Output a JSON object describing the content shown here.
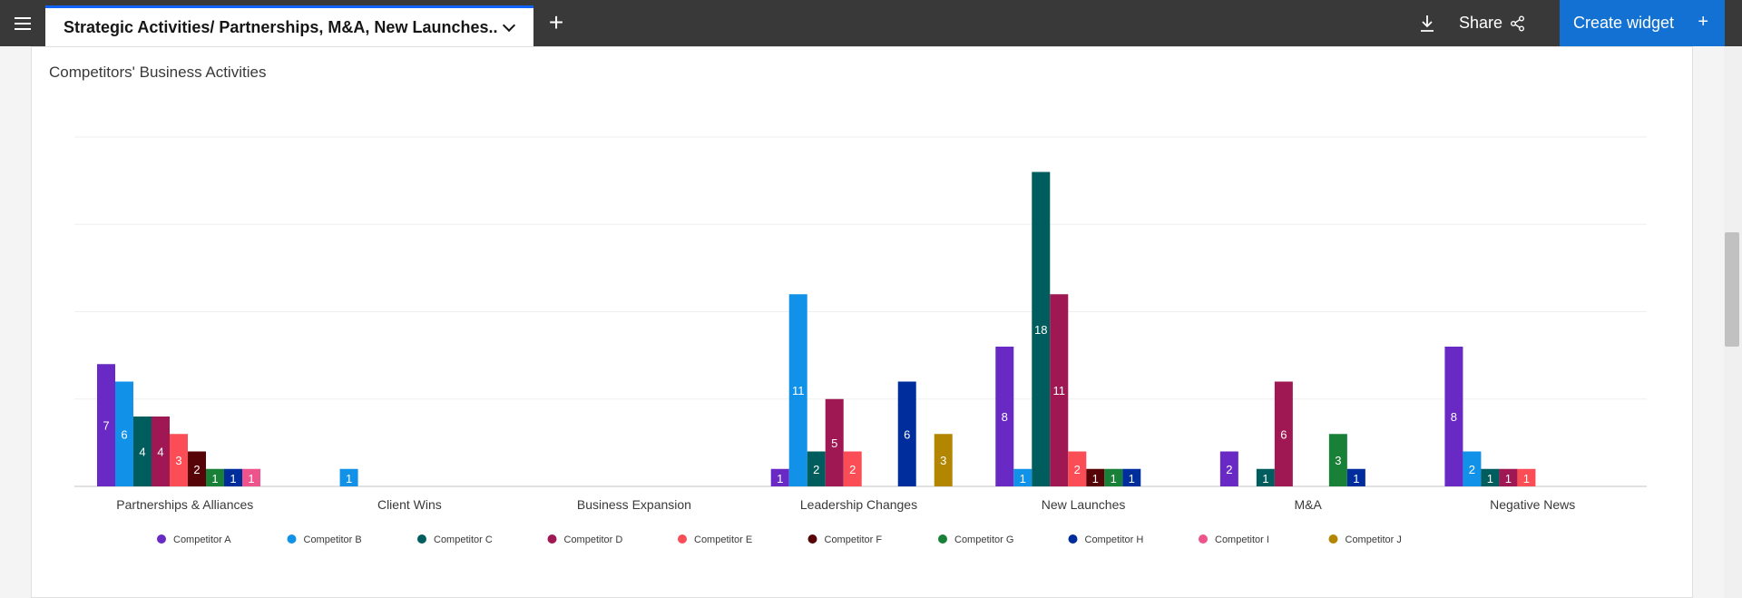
{
  "header": {
    "tab_title": "Strategic Activities/ Partnerships, M&A, New Launches..",
    "add_tab": "+",
    "share_label": "Share",
    "create_label": "Create widget",
    "create_plus": "+"
  },
  "colors": {
    "topbar": "#393939",
    "accent": "#1271d2"
  },
  "chart_data": {
    "type": "bar",
    "title": "Competitors' Business Activities",
    "xlabel": "",
    "ylabel": "",
    "ylim": [
      0,
      20
    ],
    "grid": true,
    "legend_position": "bottom",
    "categories": [
      "Partnerships & Alliances",
      "Client Wins",
      "Business Expansion",
      "Leadership Changes",
      "New Launches",
      "M&A",
      "Negative News"
    ],
    "series": [
      {
        "name": "Competitor A",
        "color": "#6929c4",
        "values": [
          7,
          null,
          null,
          1,
          8,
          2,
          8
        ]
      },
      {
        "name": "Competitor B",
        "color": "#1192e8",
        "values": [
          6,
          1,
          null,
          11,
          1,
          null,
          2
        ]
      },
      {
        "name": "Competitor C",
        "color": "#005d5d",
        "values": [
          4,
          null,
          null,
          2,
          18,
          1,
          1
        ]
      },
      {
        "name": "Competitor D",
        "color": "#9f1853",
        "values": [
          4,
          null,
          null,
          5,
          11,
          6,
          1
        ]
      },
      {
        "name": "Competitor E",
        "color": "#fa4d56",
        "values": [
          3,
          null,
          null,
          2,
          2,
          null,
          1
        ]
      },
      {
        "name": "Competitor F",
        "color": "#570408",
        "values": [
          2,
          null,
          null,
          null,
          1,
          null,
          null
        ]
      },
      {
        "name": "Competitor G",
        "color": "#198038",
        "values": [
          1,
          null,
          null,
          null,
          1,
          3,
          null
        ]
      },
      {
        "name": "Competitor H",
        "color": "#002d9c",
        "values": [
          1,
          null,
          null,
          6,
          1,
          1,
          null
        ]
      },
      {
        "name": "Competitor I",
        "color": "#ee538b",
        "values": [
          1,
          null,
          null,
          null,
          null,
          null,
          null
        ]
      },
      {
        "name": "Competitor J",
        "color": "#b28600",
        "values": [
          null,
          null,
          null,
          3,
          null,
          null,
          null
        ]
      }
    ]
  }
}
